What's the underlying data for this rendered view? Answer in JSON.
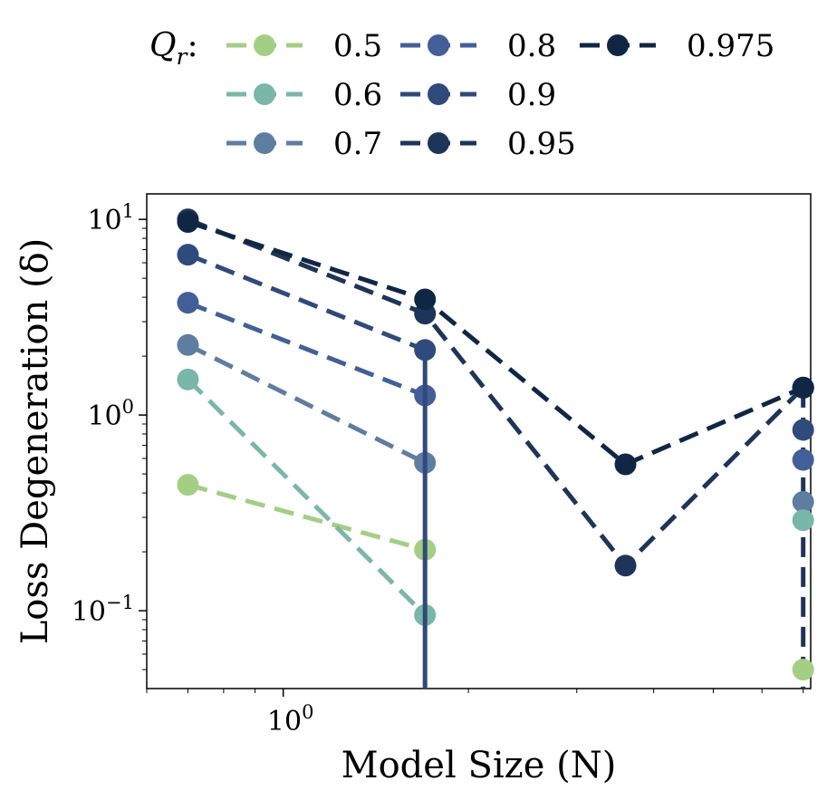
{
  "chart_data": {
    "type": "line",
    "title": "",
    "xlabel": "Model Size (N)",
    "ylabel": "Loss Degeneration (δ)",
    "xscale": "log",
    "yscale": "log",
    "xlim": [
      0.6,
      7.2
    ],
    "ylim": [
      0.04,
      13.5
    ],
    "x_ticks": [
      {
        "value": 1.0,
        "label": "10^0"
      }
    ],
    "y_ticks": [
      {
        "value": 10,
        "label": "10^1"
      },
      {
        "value": 1,
        "label": "10^0"
      },
      {
        "value": 0.1,
        "label": "10^-1"
      }
    ],
    "legend": {
      "title": "Qr:",
      "title_symbol": "Q",
      "title_subscript": "r",
      "placement": "top",
      "columns": 3
    },
    "series": [
      {
        "name": "0.5",
        "color": "#a3cf83",
        "x": [
          0.7,
          1.7
        ],
        "y": [
          0.44,
          0.205
        ],
        "drop_after": false
      },
      {
        "name": "0.6",
        "color": "#79b7a8",
        "x": [
          0.7,
          1.7
        ],
        "y": [
          1.52,
          0.095
        ],
        "drop_after": false
      },
      {
        "name": "0.7",
        "color": "#5d7ea0",
        "x": [
          0.7,
          1.7
        ],
        "y": [
          2.28,
          0.57
        ],
        "drop_after": false
      },
      {
        "name": "0.8",
        "color": "#435f9a",
        "x": [
          0.7,
          1.7
        ],
        "y": [
          3.75,
          1.26
        ],
        "drop_after": false
      },
      {
        "name": "0.9",
        "color": "#2f4a7c",
        "x": [
          0.7,
          1.7
        ],
        "y": [
          6.6,
          2.15
        ],
        "drop_after": true
      },
      {
        "name": "0.95",
        "color": "#1d3559",
        "x": [
          0.7,
          1.7,
          3.6,
          7.0
        ],
        "y": [
          10.0,
          3.3,
          0.17,
          1.38
        ],
        "drop_after": false
      },
      {
        "name": "0.975",
        "color": "#0f2745",
        "x": [
          0.7,
          1.7,
          3.6,
          7.0
        ],
        "y": [
          9.7,
          3.9,
          0.56,
          1.38
        ],
        "drop_after": false
      }
    ],
    "right_end_points": [
      {
        "series": "0.9",
        "x": 7.0,
        "y": 0.84,
        "color": "#2f4a7c"
      },
      {
        "series": "0.8",
        "x": 7.0,
        "y": 0.59,
        "color": "#435f9a"
      },
      {
        "series": "0.7",
        "x": 7.0,
        "y": 0.36,
        "color": "#5d7ea0"
      },
      {
        "series": "0.6",
        "x": 7.0,
        "y": 0.29,
        "color": "#79b7a8"
      },
      {
        "series": "0.5",
        "x": 7.0,
        "y": 0.05,
        "color": "#a3cf83"
      }
    ],
    "right_drop": {
      "x": 7.0,
      "from_y": 1.38,
      "color": "#1d3559"
    }
  }
}
